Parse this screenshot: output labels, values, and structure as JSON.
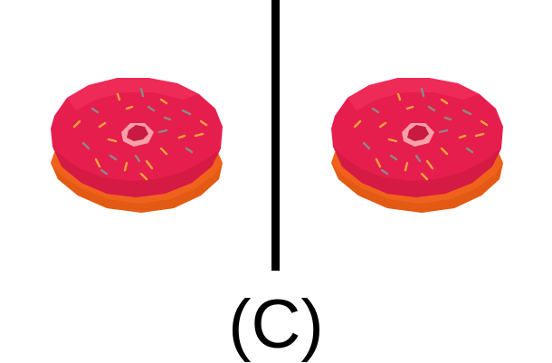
{
  "caption": "(C)",
  "colors": {
    "icing": "#e61e4d",
    "icing_top": "#ee2a57",
    "icing_shadow": "#c9173f",
    "dough": "#f0621c",
    "dough_dark": "#d9530f",
    "hole": "#f7a0a8",
    "divider": "#000000",
    "background": "#ffffff"
  },
  "images": [
    {
      "icon": "donut-icon",
      "side": "left"
    },
    {
      "icon": "donut-icon",
      "side": "right"
    }
  ]
}
